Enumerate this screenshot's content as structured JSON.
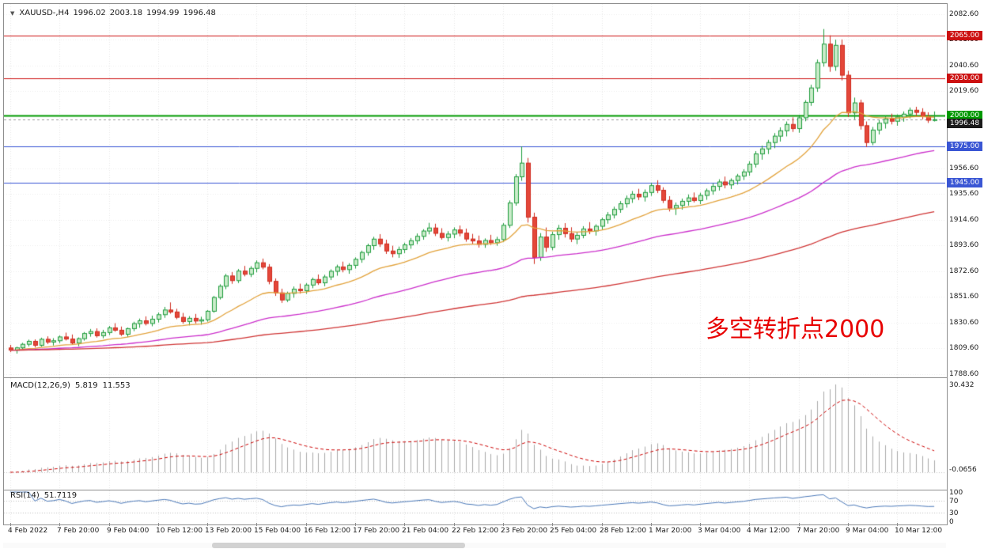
{
  "header": {
    "expander_icon": "▼",
    "symbol_period": "XAUUSD-,H4",
    "open": "1996.02",
    "high": "2003.18",
    "low": "1994.99",
    "close": "1996.48"
  },
  "chart_data": {
    "type": "candlestick",
    "symbol": "XAUUSD-",
    "timeframe": "H4",
    "annotation": {
      "text": "多空转折点2000",
      "color": "#e80000"
    },
    "price_axis": {
      "top": 2091.0,
      "bottom": 1786.0,
      "tick_labels": [
        2082.6,
        2061.6,
        2040.6,
        2019.6,
        1956.6,
        1935.6,
        1914.6,
        1893.6,
        1872.6,
        1851.6,
        1830.6,
        1809.6,
        1788.6
      ]
    },
    "time_axis": {
      "candles_per_label": 8,
      "labels": [
        "4 Feb 2022",
        "7 Feb 20:00",
        "9 Feb 04:00",
        "10 Feb 12:00",
        "13 Feb 20:00",
        "15 Feb 04:00",
        "16 Feb 12:00",
        "17 Feb 20:00",
        "21 Feb 04:00",
        "22 Feb 12:00",
        "23 Feb 20:00",
        "25 Feb 04:00",
        "28 Feb 12:00",
        "1 Mar 20:00",
        "3 Mar 04:00",
        "4 Mar 12:00",
        "7 Mar 20:00",
        "9 Mar 04:00",
        "10 Mar 12:00"
      ]
    },
    "levels": [
      {
        "price": 2065.0,
        "label": "2065.00",
        "color": "#cc1111",
        "width": 1
      },
      {
        "price": 2030.0,
        "label": "2030.00",
        "color": "#cc1111",
        "width": 1
      },
      {
        "price": 2000.0,
        "label": "2000.00",
        "color": "#009900",
        "width": 2
      },
      {
        "price": 1975.0,
        "label": "1975.00",
        "color": "#3a56d4",
        "width": 1
      },
      {
        "price": 1945.0,
        "label": "1945.00",
        "color": "#3a56d4",
        "width": 1
      }
    ],
    "current_price": {
      "value": 1996.48,
      "label": "1996.48",
      "color": "#1a1a1a"
    },
    "candle_style": {
      "up_border": "#1f9c3d",
      "up_fill": "#c9ebc9",
      "down_border": "#cf2b1e",
      "down_fill": "#e4473a"
    },
    "moving_averages": [
      {
        "type": "ema",
        "period": 20,
        "color": "#e2a23b"
      },
      {
        "type": "ema",
        "period": 60,
        "color": "#cb2ecb"
      },
      {
        "type": "ema",
        "period": 150,
        "color": "#cf3434"
      }
    ],
    "indicators": {
      "macd": {
        "label": "MACD(12,26,9)",
        "value_main": "5.819",
        "value_signal": "11.553",
        "fast": 12,
        "slow": 26,
        "signal": 9,
        "axis_max_label": "30.432",
        "axis_min_label": "-0.0656",
        "histogram_color": "#a9a9a9",
        "signal_color": "#cc0000"
      },
      "rsi": {
        "label": "RSI(14)",
        "value": "51.7119",
        "period": 14,
        "color": "#4a78b8",
        "levels": [
          70,
          30
        ],
        "axis_labels": [
          "100",
          "70",
          "30",
          "0"
        ]
      }
    },
    "candles": [
      [
        1810.0,
        1812.5,
        1806.6,
        1808.2
      ],
      [
        1808.2,
        1811.0,
        1805.4,
        1810.1
      ],
      [
        1810.1,
        1814.2,
        1808.0,
        1813.0
      ],
      [
        1813.0,
        1816.8,
        1811.2,
        1815.4
      ],
      [
        1815.4,
        1817.0,
        1810.5,
        1812.2
      ],
      [
        1812.2,
        1818.4,
        1811.0,
        1817.1
      ],
      [
        1817.1,
        1819.5,
        1813.2,
        1814.8
      ],
      [
        1814.8,
        1818.0,
        1812.0,
        1815.9
      ],
      [
        1815.9,
        1820.2,
        1814.0,
        1819.0
      ],
      [
        1819.0,
        1822.5,
        1816.1,
        1817.3
      ],
      [
        1817.3,
        1821.0,
        1812.8,
        1814.0
      ],
      [
        1814.0,
        1818.6,
        1811.5,
        1817.6
      ],
      [
        1817.6,
        1823.0,
        1816.0,
        1821.8
      ],
      [
        1821.8,
        1825.5,
        1819.2,
        1823.4
      ],
      [
        1823.4,
        1826.0,
        1818.5,
        1820.0
      ],
      [
        1820.0,
        1824.8,
        1817.9,
        1822.6
      ],
      [
        1822.6,
        1828.0,
        1820.5,
        1826.4
      ],
      [
        1826.4,
        1830.2,
        1823.3,
        1824.5
      ],
      [
        1824.5,
        1827.5,
        1819.8,
        1821.2
      ],
      [
        1821.2,
        1826.6,
        1818.9,
        1825.8
      ],
      [
        1825.8,
        1831.4,
        1823.7,
        1829.9
      ],
      [
        1829.9,
        1834.0,
        1826.5,
        1832.2
      ],
      [
        1832.2,
        1835.8,
        1828.4,
        1830.0
      ],
      [
        1830.0,
        1836.4,
        1827.7,
        1833.5
      ],
      [
        1833.5,
        1839.0,
        1830.8,
        1837.2
      ],
      [
        1837.2,
        1843.5,
        1834.6,
        1841.0
      ],
      [
        1841.0,
        1847.2,
        1838.0,
        1839.4
      ],
      [
        1839.4,
        1842.0,
        1833.5,
        1835.0
      ],
      [
        1835.0,
        1838.6,
        1829.8,
        1831.6
      ],
      [
        1831.6,
        1836.0,
        1828.4,
        1834.2
      ],
      [
        1834.2,
        1837.8,
        1830.0,
        1832.0
      ],
      [
        1832.0,
        1835.5,
        1829.0,
        1833.0
      ],
      [
        1833.0,
        1841.0,
        1831.5,
        1840.0
      ],
      [
        1840.0,
        1852.5,
        1838.8,
        1851.2
      ],
      [
        1851.2,
        1862.0,
        1849.6,
        1860.4
      ],
      [
        1860.4,
        1870.5,
        1858.0,
        1868.8
      ],
      [
        1868.8,
        1872.0,
        1862.4,
        1865.0
      ],
      [
        1865.0,
        1874.5,
        1863.0,
        1872.8
      ],
      [
        1872.8,
        1877.0,
        1868.5,
        1870.2
      ],
      [
        1870.2,
        1876.8,
        1867.9,
        1875.0
      ],
      [
        1875.0,
        1881.5,
        1871.8,
        1879.6
      ],
      [
        1879.6,
        1883.0,
        1874.2,
        1876.0
      ],
      [
        1876.0,
        1878.5,
        1862.0,
        1864.4
      ],
      [
        1864.4,
        1866.8,
        1852.5,
        1855.0
      ],
      [
        1855.0,
        1858.4,
        1846.8,
        1849.2
      ],
      [
        1849.2,
        1856.0,
        1847.5,
        1854.6
      ],
      [
        1854.6,
        1860.2,
        1851.0,
        1858.0
      ],
      [
        1858.0,
        1862.5,
        1854.4,
        1856.8
      ],
      [
        1856.8,
        1863.0,
        1854.2,
        1861.4
      ],
      [
        1861.4,
        1867.5,
        1858.8,
        1865.9
      ],
      [
        1865.9,
        1870.0,
        1861.5,
        1863.2
      ],
      [
        1863.2,
        1869.8,
        1860.4,
        1868.0
      ],
      [
        1868.0,
        1874.2,
        1865.5,
        1872.6
      ],
      [
        1872.6,
        1878.0,
        1869.0,
        1876.2
      ],
      [
        1876.2,
        1880.5,
        1871.8,
        1874.0
      ],
      [
        1874.0,
        1879.2,
        1870.6,
        1877.5
      ],
      [
        1877.5,
        1884.0,
        1874.8,
        1882.4
      ],
      [
        1882.4,
        1889.5,
        1879.6,
        1888.0
      ],
      [
        1888.0,
        1895.2,
        1885.4,
        1893.6
      ],
      [
        1893.6,
        1900.8,
        1890.2,
        1898.9
      ],
      [
        1898.9,
        1903.0,
        1892.5,
        1895.0
      ],
      [
        1895.0,
        1898.4,
        1886.8,
        1889.2
      ],
      [
        1889.2,
        1893.5,
        1884.0,
        1887.0
      ],
      [
        1887.0,
        1892.8,
        1883.6,
        1890.4
      ],
      [
        1890.4,
        1896.0,
        1887.5,
        1894.2
      ],
      [
        1894.2,
        1899.8,
        1891.0,
        1897.6
      ],
      [
        1897.6,
        1903.5,
        1894.8,
        1901.2
      ],
      [
        1901.2,
        1907.0,
        1898.4,
        1905.5
      ],
      [
        1905.5,
        1912.2,
        1902.8,
        1908.0
      ],
      [
        1908.0,
        1911.5,
        1901.4,
        1903.6
      ],
      [
        1903.6,
        1907.8,
        1898.5,
        1900.2
      ],
      [
        1900.2,
        1905.4,
        1897.0,
        1903.0
      ],
      [
        1903.0,
        1908.5,
        1899.6,
        1906.4
      ],
      [
        1906.4,
        1910.0,
        1901.2,
        1903.8
      ],
      [
        1903.8,
        1907.5,
        1896.8,
        1899.0
      ],
      [
        1899.0,
        1903.2,
        1894.5,
        1897.4
      ],
      [
        1897.4,
        1901.8,
        1892.0,
        1894.6
      ],
      [
        1894.6,
        1899.5,
        1891.8,
        1897.8
      ],
      [
        1897.8,
        1902.4,
        1894.2,
        1896.0
      ],
      [
        1896.0,
        1900.8,
        1893.5,
        1898.5
      ],
      [
        1898.5,
        1912.0,
        1896.4,
        1910.2
      ],
      [
        1910.2,
        1930.5,
        1908.0,
        1928.4
      ],
      [
        1928.4,
        1952.0,
        1926.2,
        1949.8
      ],
      [
        1949.8,
        1974.6,
        1946.5,
        1961.0
      ],
      [
        1961.0,
        1965.2,
        1912.4,
        1916.8
      ],
      [
        1916.8,
        1920.5,
        1878.6,
        1884.0
      ],
      [
        1884.0,
        1903.8,
        1881.2,
        1900.6
      ],
      [
        1900.6,
        1908.4,
        1888.5,
        1892.2
      ],
      [
        1892.2,
        1905.0,
        1889.8,
        1902.6
      ],
      [
        1902.6,
        1910.5,
        1898.4,
        1907.8
      ],
      [
        1907.8,
        1912.0,
        1900.2,
        1903.4
      ],
      [
        1903.4,
        1908.6,
        1896.5,
        1899.0
      ],
      [
        1899.0,
        1904.2,
        1894.8,
        1902.0
      ],
      [
        1902.0,
        1909.5,
        1899.6,
        1907.2
      ],
      [
        1907.2,
        1912.8,
        1903.0,
        1905.6
      ],
      [
        1905.6,
        1911.0,
        1901.8,
        1909.4
      ],
      [
        1909.4,
        1916.5,
        1906.2,
        1914.8
      ],
      [
        1914.8,
        1921.0,
        1911.5,
        1918.6
      ],
      [
        1918.6,
        1925.4,
        1915.8,
        1923.2
      ],
      [
        1923.2,
        1930.0,
        1920.4,
        1927.8
      ],
      [
        1927.8,
        1934.5,
        1924.6,
        1932.0
      ],
      [
        1932.0,
        1938.2,
        1928.5,
        1935.6
      ],
      [
        1935.6,
        1940.0,
        1930.8,
        1933.4
      ],
      [
        1933.4,
        1939.5,
        1929.6,
        1937.0
      ],
      [
        1937.0,
        1944.8,
        1934.2,
        1942.6
      ],
      [
        1942.6,
        1947.0,
        1936.5,
        1938.8
      ],
      [
        1938.8,
        1941.2,
        1928.4,
        1930.6
      ],
      [
        1930.6,
        1934.0,
        1921.5,
        1924.2
      ],
      [
        1924.2,
        1928.8,
        1918.6,
        1926.4
      ],
      [
        1926.4,
        1932.0,
        1923.0,
        1929.8
      ],
      [
        1929.8,
        1935.4,
        1926.2,
        1932.6
      ],
      [
        1932.6,
        1937.0,
        1928.8,
        1930.4
      ],
      [
        1930.4,
        1936.8,
        1927.5,
        1934.6
      ],
      [
        1934.6,
        1940.2,
        1931.0,
        1938.4
      ],
      [
        1938.4,
        1944.5,
        1935.2,
        1942.0
      ],
      [
        1942.0,
        1947.8,
        1938.6,
        1945.6
      ],
      [
        1945.6,
        1950.0,
        1940.4,
        1943.2
      ],
      [
        1943.2,
        1948.5,
        1939.8,
        1946.8
      ],
      [
        1946.8,
        1952.2,
        1943.5,
        1950.4
      ],
      [
        1950.4,
        1956.0,
        1947.2,
        1953.8
      ],
      [
        1953.8,
        1962.5,
        1950.6,
        1960.2
      ],
      [
        1960.2,
        1970.8,
        1957.4,
        1968.5
      ],
      [
        1968.5,
        1975.2,
        1963.8,
        1972.6
      ],
      [
        1972.6,
        1980.0,
        1968.4,
        1977.8
      ],
      [
        1977.8,
        1985.5,
        1973.2,
        1983.0
      ],
      [
        1983.0,
        1990.2,
        1978.6,
        1987.4
      ],
      [
        1987.4,
        1995.0,
        1982.8,
        1992.6
      ],
      [
        1992.6,
        1998.4,
        1986.5,
        1989.2
      ],
      [
        1989.2,
        2000.5,
        1985.8,
        1998.0
      ],
      [
        1998.0,
        2012.4,
        1995.2,
        2010.6
      ],
      [
        2010.6,
        2025.0,
        2007.8,
        2022.4
      ],
      [
        2022.4,
        2045.6,
        2019.2,
        2043.0
      ],
      [
        2043.0,
        2070.5,
        2039.8,
        2058.2
      ],
      [
        2058.2,
        2065.4,
        2035.6,
        2040.0
      ],
      [
        2040.0,
        2061.8,
        2036.4,
        2057.2
      ],
      [
        2057.2,
        2062.0,
        2028.5,
        2032.8
      ],
      [
        2032.8,
        2036.4,
        1998.6,
        2002.0
      ],
      [
        2002.0,
        2014.5,
        1996.8,
        2010.2
      ],
      [
        2010.2,
        2012.8,
        1988.4,
        1991.6
      ],
      [
        1991.6,
        1995.0,
        1974.2,
        1977.8
      ],
      [
        1977.8,
        1990.5,
        1975.6,
        1988.0
      ],
      [
        1988.0,
        1996.2,
        1984.4,
        1993.6
      ],
      [
        1993.6,
        1999.8,
        1989.2,
        1997.0
      ],
      [
        1997.0,
        2001.4,
        1992.6,
        1995.2
      ],
      [
        1995.2,
        2000.8,
        1991.5,
        1998.6
      ],
      [
        1998.6,
        2003.2,
        1994.8,
        2001.0
      ],
      [
        2001.0,
        2006.4,
        1997.6,
        2004.2
      ],
      [
        2004.2,
        2007.0,
        1999.5,
        2002.4
      ],
      [
        2002.4,
        2005.8,
        1996.8,
        1999.0
      ],
      [
        1999.0,
        2002.5,
        1993.8,
        1996.0
      ],
      [
        1996.02,
        2003.18,
        1994.99,
        1996.48
      ]
    ]
  }
}
